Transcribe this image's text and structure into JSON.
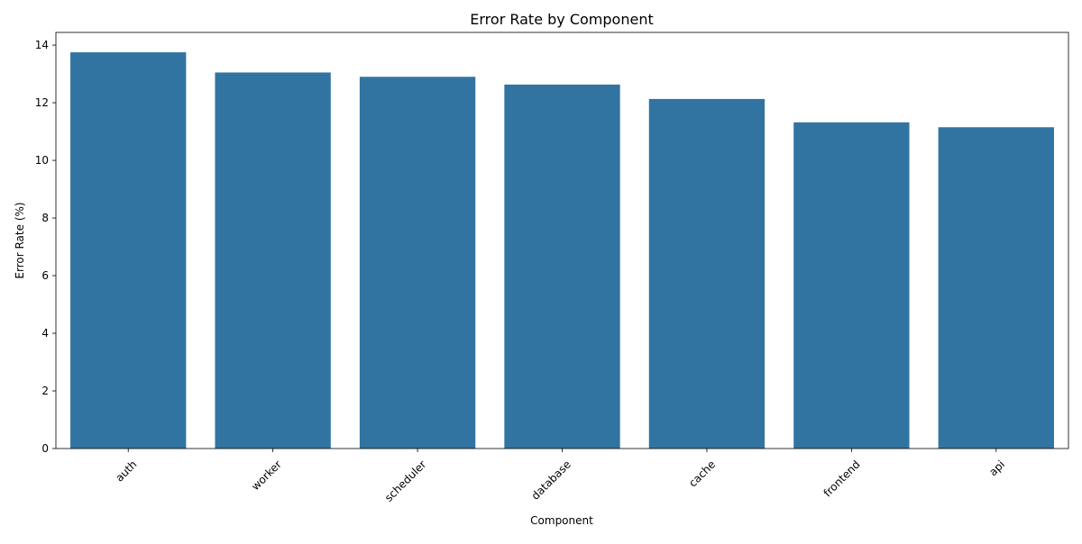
{
  "chart_data": {
    "type": "bar",
    "title": "Error Rate by Component",
    "xlabel": "Component",
    "ylabel": "Error Rate (%)",
    "categories": [
      "auth",
      "worker",
      "scheduler",
      "database",
      "cache",
      "frontend",
      "api"
    ],
    "values": [
      13.75,
      13.05,
      12.9,
      12.63,
      12.13,
      11.32,
      11.15
    ],
    "ylim": [
      0,
      14.44
    ],
    "yticks": [
      0,
      2,
      4,
      6,
      8,
      10,
      12,
      14
    ],
    "ytick_labels": [
      "0",
      "2",
      "4",
      "6",
      "8",
      "10",
      "12",
      "14"
    ],
    "bar_color": "#3274a1",
    "grid": false,
    "x_tick_rotation": "45deg"
  }
}
